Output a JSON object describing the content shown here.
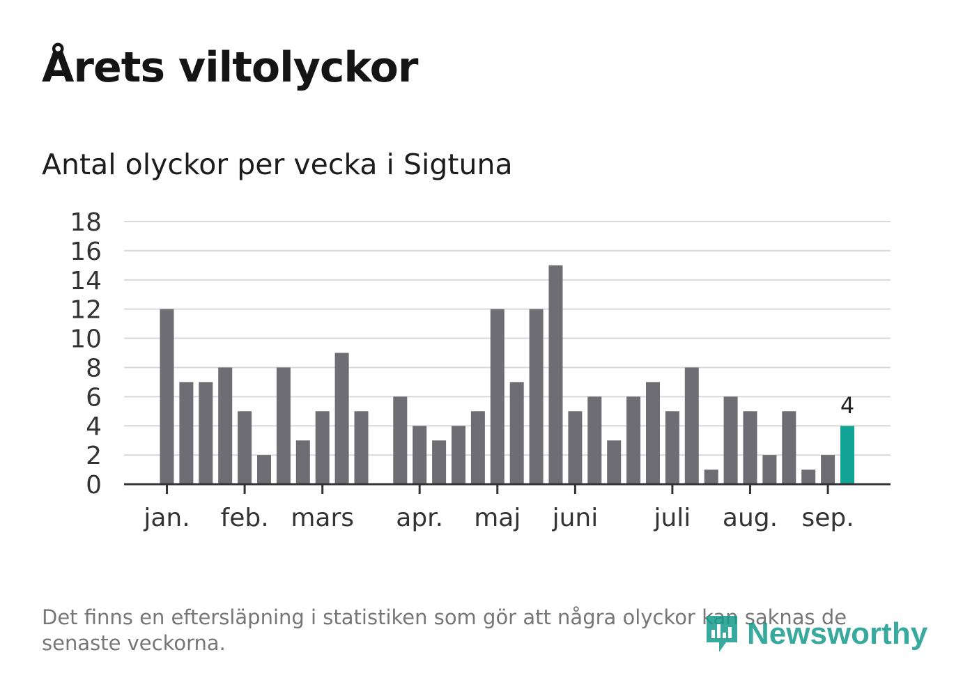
{
  "title": "Årets viltolyckor",
  "subtitle": "Antal olyckor per vecka i Sigtuna",
  "footnote": "Det finns en eftersläpning i statistiken som gör att några olyckor kan saknas de senaste veckorna.",
  "brand": {
    "name": "Newsworthy",
    "color": "#159b8c"
  },
  "colors": {
    "bar": "#6e6d73",
    "highlight": "#12a595",
    "grid": "#d9d9d9",
    "axis": "#333333",
    "text": "#333333"
  },
  "chart_data": {
    "type": "bar",
    "title": "Antal olyckor per vecka i Sigtuna",
    "xlabel": "",
    "ylabel": "",
    "ylim": [
      0,
      18
    ],
    "yticks": [
      0,
      2,
      4,
      6,
      8,
      10,
      12,
      14,
      16,
      18
    ],
    "grid": true,
    "legend": "none",
    "month_labels": [
      "jan.",
      "feb.",
      "mars",
      "apr.",
      "maj",
      "juni",
      "juli",
      "aug.",
      "sep."
    ],
    "month_start_week": [
      1,
      5,
      9,
      14,
      18,
      22,
      27,
      31,
      35
    ],
    "weeks": [
      1,
      2,
      3,
      4,
      5,
      6,
      7,
      8,
      9,
      10,
      11,
      12,
      13,
      14,
      15,
      16,
      17,
      18,
      19,
      20,
      21,
      22,
      23,
      24,
      25,
      26,
      27,
      28,
      29,
      30,
      31,
      32,
      33,
      34,
      35,
      36
    ],
    "values": [
      12,
      7,
      7,
      8,
      5,
      2,
      8,
      3,
      5,
      9,
      5,
      null,
      6,
      4,
      3,
      4,
      5,
      12,
      7,
      12,
      15,
      5,
      6,
      3,
      6,
      7,
      5,
      8,
      1,
      6,
      5,
      2,
      5,
      1,
      2,
      4
    ],
    "highlight_index": 35,
    "highlight_label": "4"
  }
}
